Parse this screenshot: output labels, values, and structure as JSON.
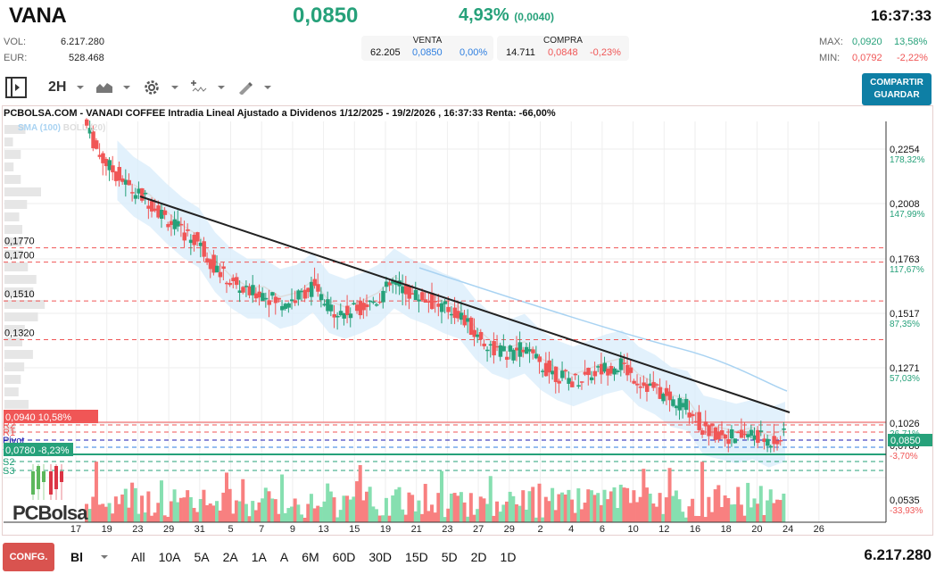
{
  "header": {
    "ticker": "VANA",
    "price": "0,0850",
    "change_pct": "4,93%",
    "change_abs": "(0,0040)",
    "time": "16:37:33"
  },
  "stats": {
    "vol_label": "VOL:",
    "vol": "6.217.280",
    "eur_label": "EUR:",
    "eur": "528.468",
    "max_label": "MAX:",
    "max": "0,0920",
    "max_pct": "13,58%",
    "min_label": "MIN:",
    "min": "0,0792",
    "min_pct": "-2,22%"
  },
  "book": {
    "sell": {
      "title": "VENTA",
      "qty": "62.205",
      "price": "0,0850",
      "pct": "0,00%"
    },
    "buy": {
      "title": "COMPRA",
      "qty": "14.711",
      "price": "0,0848",
      "pct": "-0,23%"
    }
  },
  "toolbar": {
    "interval": "2H",
    "share": "COMPARTIR",
    "save": "GUARDAR"
  },
  "colors": {
    "up": "#26a17a",
    "down": "#f05656",
    "accent": "#0e7fa5",
    "band": "#d8ecfb",
    "sma": "#a9d3f2"
  },
  "chart_title": "PCBOLSA.COM - VANADI COFFEE Intradia Lineal Ajustado a Dividenos 1/12/2025 - 19/2/2026 , 16:37:33 Renta: -66,00%",
  "legend": {
    "sma": "SMA (100)",
    "boll": "BOLL (20)"
  },
  "chart_data": {
    "type": "candlestick",
    "title": "VANADI COFFEE Intradia Lineal Ajustado a Dividenos 1/12/2025 - 19/2/2026",
    "xlabel": "",
    "ylabel": "",
    "x_ticks": [
      "17",
      "19",
      "23",
      "29",
      "31",
      "5",
      "7",
      "9",
      "13",
      "15",
      "19",
      "21",
      "23",
      "27",
      "29",
      "2",
      "4",
      "6",
      "10",
      "12",
      "16",
      "18",
      "20",
      "24",
      "26"
    ],
    "y_ticks": [
      {
        "price": "0,2254",
        "pct": "178,32%"
      },
      {
        "price": "0,2008",
        "pct": "147,99%"
      },
      {
        "price": "0,1763",
        "pct": "117,67%"
      },
      {
        "price": "0,1517",
        "pct": "87,35%"
      },
      {
        "price": "0,1271",
        "pct": "57,03%"
      },
      {
        "price": "0,1026",
        "pct": "26,71%"
      },
      {
        "price": "0,0780",
        "pct": "-3,70%"
      },
      {
        "price": "0,0535",
        "pct": "-33,93%"
      }
    ],
    "ylim": [
      0.049,
      0.245
    ],
    "levels": [
      {
        "label": "0,1770",
        "value": 0.177
      },
      {
        "label": "0,1700",
        "value": 0.17
      },
      {
        "label": "0,1510",
        "value": 0.151
      },
      {
        "label": "0,1320",
        "value": 0.132
      }
    ],
    "pivots": {
      "R2": 0.0908,
      "R1": 0.0885,
      "Pivot": 0.0858,
      "S1": 0.0824,
      "S2": 0.078,
      "S3": 0.0748
    },
    "max_tag": {
      "label": "0,0940",
      "pct": "10,58%"
    },
    "min_tag": {
      "label": "0,0780",
      "pct": "-8,23%"
    },
    "last_price": "0,0850",
    "close_path": [
      0.24,
      0.222,
      0.213,
      0.205,
      0.2,
      0.192,
      0.185,
      0.18,
      0.168,
      0.16,
      0.155,
      0.155,
      0.15,
      0.152,
      0.158,
      0.148,
      0.145,
      0.148,
      0.152,
      0.16,
      0.155,
      0.152,
      0.148,
      0.145,
      0.135,
      0.128,
      0.125,
      0.128,
      0.12,
      0.115,
      0.112,
      0.115,
      0.118,
      0.12,
      0.112,
      0.108,
      0.102,
      0.1,
      0.088,
      0.086,
      0.084,
      0.086,
      0.082,
      0.085
    ],
    "trendline": {
      "from": [
        157,
        220
      ],
      "to": [
        885,
        462
      ]
    },
    "volume_note": "histogram bars, green up / red down"
  },
  "ranges": [
    "All",
    "10A",
    "5A",
    "2A",
    "1A",
    "A",
    "6M",
    "60D",
    "30D",
    "15D",
    "5D",
    "2D",
    "1D"
  ],
  "footer": {
    "confg": "CONFG.",
    "mode": "Bl",
    "total_volume": "6.217.280"
  },
  "logo": "PCBolsa"
}
